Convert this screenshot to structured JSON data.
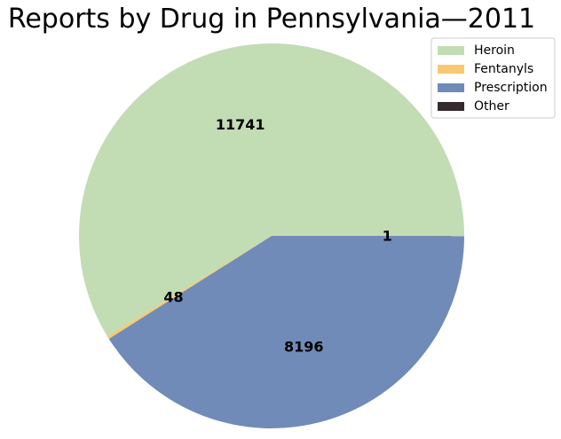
{
  "chart_data": {
    "type": "pie",
    "title": "Reports by Drug in Pennsylvania—2011",
    "categories": [
      "Heroin",
      "Fentanyls",
      "Prescription",
      "Other"
    ],
    "values": [
      11741,
      48,
      8196,
      1
    ],
    "labels": [
      "11741",
      "48",
      "8196",
      "1"
    ],
    "colors": [
      "#c2dcb3",
      "#fac86f",
      "#708bb8",
      "#332b2e"
    ],
    "legend_position": "top-right",
    "start_angle_deg": 0,
    "direction": "counterclockwise"
  }
}
